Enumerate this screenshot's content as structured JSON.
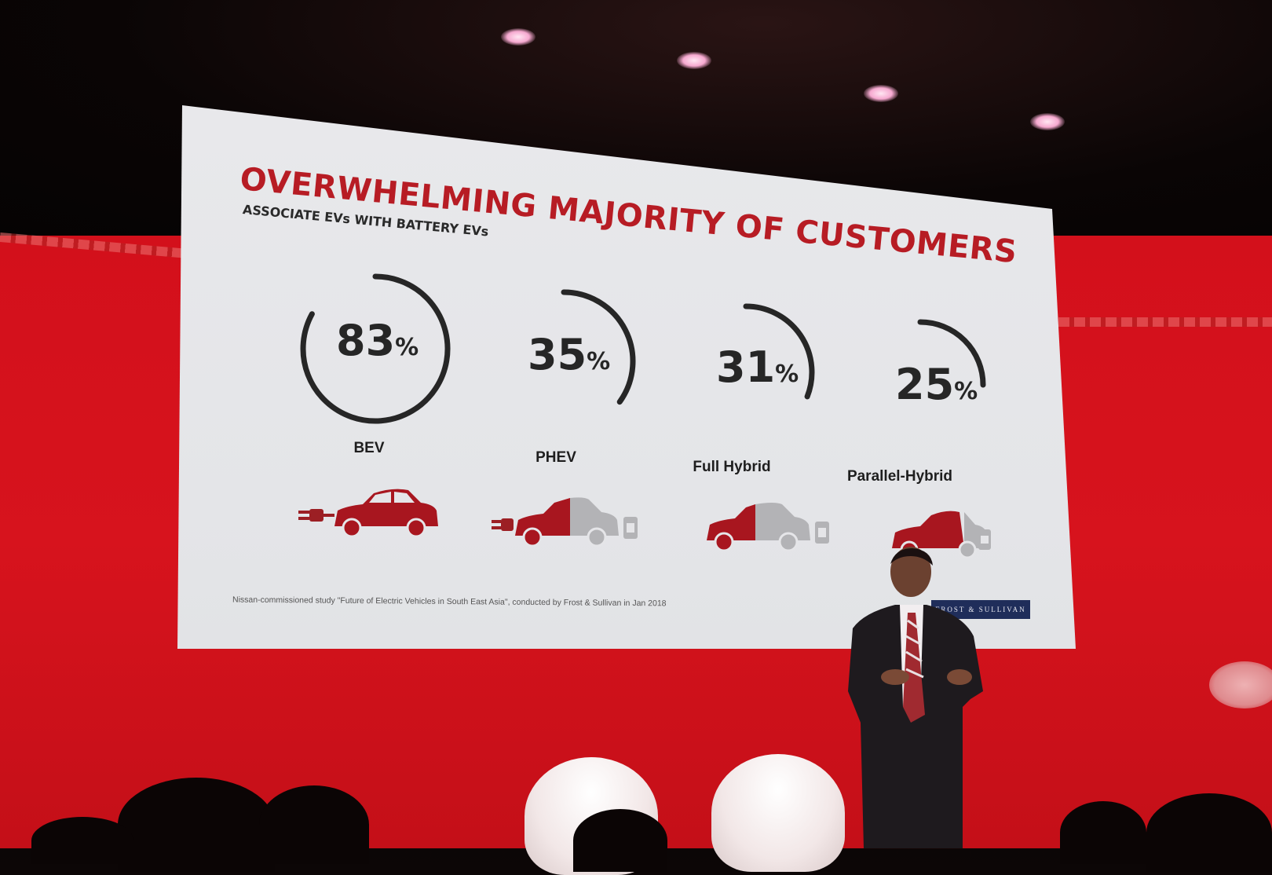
{
  "slide": {
    "title": "OVERWHELMING MAJORITY OF CUSTOMERS",
    "subtitle": "ASSOCIATE EVs WITH BATTERY EVs",
    "source_note": "Nissan-commissioned study \"Future of Electric Vehicles in South East Asia\", conducted by Frost & Sullivan in Jan 2018",
    "logo_text": "FROST & SULLIVAN",
    "accent_color": "#b71c24",
    "stats": [
      {
        "value": "83",
        "unit": "%",
        "fraction": 0.83,
        "label": "BEV",
        "car_red_fraction": 1.0,
        "icon": "ev-plug-car-icon"
      },
      {
        "value": "35",
        "unit": "%",
        "fraction": 0.35,
        "label": "PHEV",
        "car_red_fraction": 0.5,
        "icon": "plug-in-hybrid-car-icon"
      },
      {
        "value": "31",
        "unit": "%",
        "fraction": 0.31,
        "label": "Full Hybrid",
        "car_red_fraction": 0.5,
        "icon": "hybrid-car-icon"
      },
      {
        "value": "25",
        "unit": "%",
        "fraction": 0.25,
        "label": "Parallel-Hybrid",
        "car_red_fraction": 0.7,
        "icon": "parallel-hybrid-car-icon"
      }
    ]
  }
}
